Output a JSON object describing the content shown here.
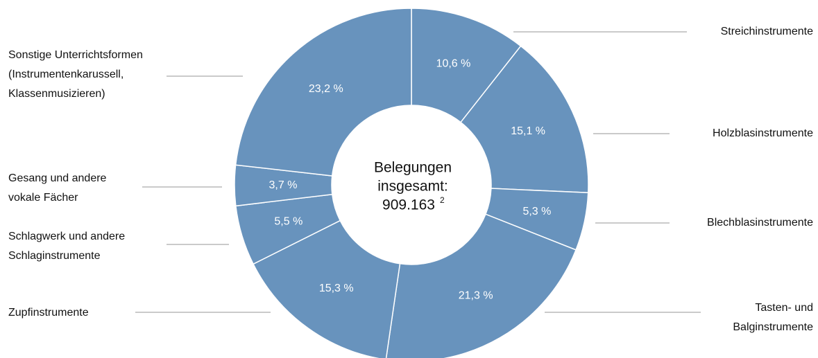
{
  "chart_data": {
    "type": "donut",
    "center_label": [
      "Belegungen",
      "insgesamt:",
      "909.163"
    ],
    "center_footnote": "2",
    "categories": [
      [
        "Streichinstrumente"
      ],
      [
        "Holzblasinstrumente"
      ],
      [
        "Blechblasinstrumente"
      ],
      [
        "Tasten- und",
        "Balginstrumente"
      ],
      [
        "Zupfinstrumente"
      ],
      [
        "Schlagwerk und andere",
        "Schlaginstrumente"
      ],
      [
        "Gesang  und andere",
        "vokale Fächer"
      ],
      [
        "Sonstige Unterrichtsformen",
        "(Instrumentenkarussell,",
        "Klassenmusizieren)"
      ]
    ],
    "values": [
      10.6,
      15.1,
      5.3,
      21.3,
      15.3,
      5.5,
      3.7,
      23.2
    ],
    "value_labels": [
      "10,6 %",
      "15,1 %",
      "5,3 %",
      "21,3 %",
      "15,3 %",
      "5,5 %",
      "3,7 %",
      "23,2 %"
    ],
    "color": "#6893bd"
  }
}
